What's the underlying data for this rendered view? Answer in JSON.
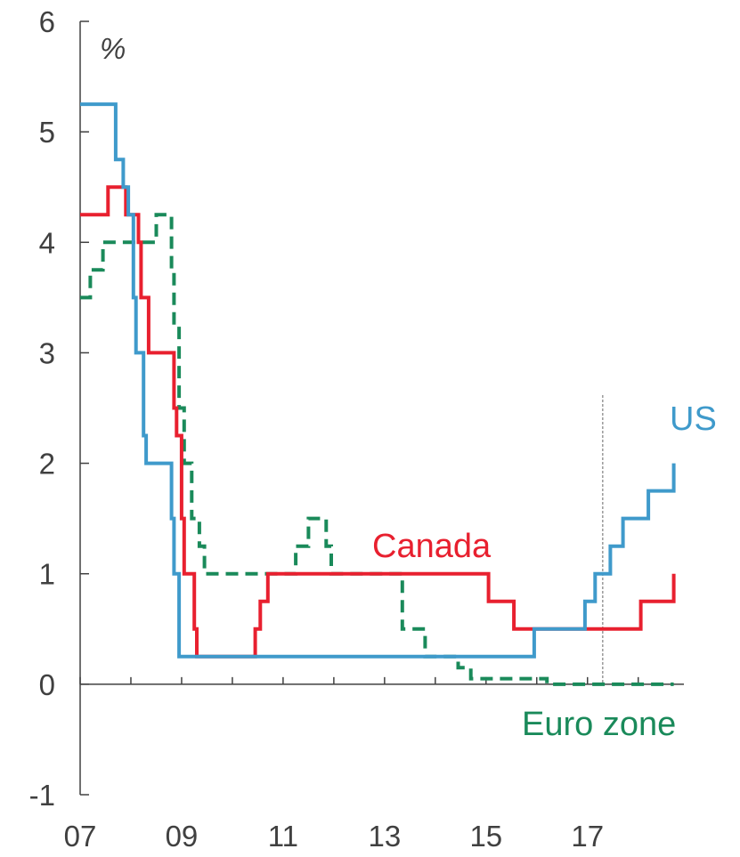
{
  "chart_data": {
    "type": "line",
    "step": true,
    "unit_label": "%",
    "ylim": [
      -1,
      6
    ],
    "y_ticks": [
      -1,
      0,
      1,
      2,
      3,
      4,
      5,
      6
    ],
    "xlim": [
      2007.0,
      2018.9
    ],
    "x_ticks": [
      2007,
      2008,
      2009,
      2010,
      2011,
      2012,
      2013,
      2014,
      2015,
      2016,
      2017,
      2018
    ],
    "x_tick_labels": [
      {
        "x": 2007,
        "label": "07"
      },
      {
        "x": 2009,
        "label": "09"
      },
      {
        "x": 2011,
        "label": "11"
      },
      {
        "x": 2013,
        "label": "13"
      },
      {
        "x": 2015,
        "label": "15"
      },
      {
        "x": 2017,
        "label": "17"
      }
    ],
    "marker_line_x": 2017.3,
    "series": [
      {
        "name": "US",
        "color": "#3f9acb",
        "dashed": false,
        "points": [
          [
            2007.0,
            5.25
          ],
          [
            2007.7,
            4.75
          ],
          [
            2007.85,
            4.5
          ],
          [
            2007.95,
            4.25
          ],
          [
            2008.05,
            3.5
          ],
          [
            2008.1,
            3.0
          ],
          [
            2008.25,
            2.25
          ],
          [
            2008.3,
            2.0
          ],
          [
            2008.8,
            1.5
          ],
          [
            2008.85,
            1.0
          ],
          [
            2008.95,
            0.25
          ],
          [
            2015.95,
            0.5
          ],
          [
            2016.95,
            0.75
          ],
          [
            2017.15,
            1.0
          ],
          [
            2017.45,
            1.25
          ],
          [
            2017.7,
            1.5
          ],
          [
            2018.2,
            1.75
          ],
          [
            2018.7,
            2.0
          ]
        ],
        "end": 2018.7
      },
      {
        "name": "Canada",
        "color": "#e8202f",
        "dashed": false,
        "points": [
          [
            2007.0,
            4.25
          ],
          [
            2007.55,
            4.5
          ],
          [
            2007.9,
            4.25
          ],
          [
            2008.15,
            4.0
          ],
          [
            2008.2,
            3.5
          ],
          [
            2008.35,
            3.0
          ],
          [
            2008.85,
            2.5
          ],
          [
            2008.9,
            2.25
          ],
          [
            2009.0,
            1.5
          ],
          [
            2009.05,
            1.0
          ],
          [
            2009.25,
            0.5
          ],
          [
            2009.3,
            0.25
          ],
          [
            2010.45,
            0.5
          ],
          [
            2010.55,
            0.75
          ],
          [
            2010.7,
            1.0
          ],
          [
            2015.05,
            0.75
          ],
          [
            2015.55,
            0.5
          ],
          [
            2017.5,
            0.5
          ],
          [
            2017.7,
            0.5
          ],
          [
            2018.05,
            0.75
          ],
          [
            2018.7,
            1.0
          ]
        ],
        "end": 2018.7
      },
      {
        "name": "Euro zone",
        "color": "#1a8a5a",
        "dashed": true,
        "points": [
          [
            2007.0,
            3.5
          ],
          [
            2007.2,
            3.75
          ],
          [
            2007.45,
            4.0
          ],
          [
            2008.5,
            4.25
          ],
          [
            2008.8,
            3.75
          ],
          [
            2008.85,
            3.25
          ],
          [
            2008.95,
            2.5
          ],
          [
            2009.05,
            2.0
          ],
          [
            2009.2,
            1.5
          ],
          [
            2009.35,
            1.25
          ],
          [
            2009.45,
            1.0
          ],
          [
            2011.25,
            1.25
          ],
          [
            2011.5,
            1.5
          ],
          [
            2011.85,
            1.25
          ],
          [
            2011.95,
            1.0
          ],
          [
            2013.35,
            0.5
          ],
          [
            2013.8,
            0.25
          ],
          [
            2014.45,
            0.15
          ],
          [
            2014.7,
            0.05
          ],
          [
            2016.2,
            0.0
          ]
        ],
        "end": 2018.7
      }
    ],
    "annotations": [
      {
        "text": "US",
        "series": "US"
      },
      {
        "text": "Canada",
        "series": "Canada"
      },
      {
        "text": "Euro zone",
        "series": "Euro zone"
      }
    ]
  }
}
